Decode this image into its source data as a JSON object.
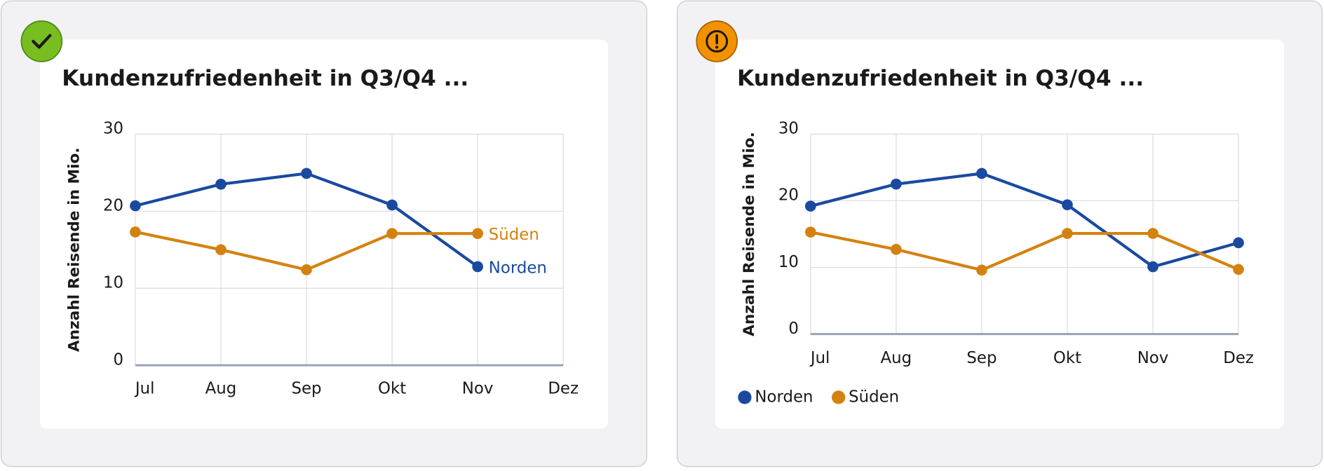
{
  "chart_data": [
    {
      "type": "line",
      "title": "Kundenzufriedenheit in Q3/Q4 ...",
      "ylabel": "Anzahl Reisende in Mio.",
      "categories": [
        "Jul",
        "Aug",
        "Sep",
        "Okt",
        "Nov",
        "Dez"
      ],
      "series": [
        {
          "name": "Norden",
          "color": "#1a4aa0",
          "values": [
            20.7,
            23.5,
            24.9,
            20.8,
            12.8,
            null
          ]
        },
        {
          "name": "Süden",
          "color": "#d4820f",
          "values": [
            17.3,
            15.0,
            12.4,
            17.1,
            17.1,
            null
          ]
        }
      ],
      "ylim": [
        0,
        30
      ],
      "yticks": [
        0,
        10,
        20,
        30
      ],
      "grid": true,
      "legend": "inline"
    },
    {
      "type": "line",
      "title": "Kundenzufriedenheit in Q3/Q4 ...",
      "ylabel": "Anzahl Reisende in Mio.",
      "categories": [
        "Jul",
        "Aug",
        "Sep",
        "Okt",
        "Nov",
        "Dez"
      ],
      "series": [
        {
          "name": "Norden",
          "color": "#1a4aa0",
          "values": [
            19.2,
            22.5,
            24.1,
            19.4,
            10.1,
            13.7
          ]
        },
        {
          "name": "Süden",
          "color": "#d4820f",
          "values": [
            15.3,
            12.7,
            9.6,
            15.1,
            15.1,
            9.7
          ]
        }
      ],
      "ylim": [
        0,
        30
      ],
      "yticks": [
        0,
        10,
        20,
        30
      ],
      "grid": true,
      "legend": "bottom-left"
    }
  ]
}
